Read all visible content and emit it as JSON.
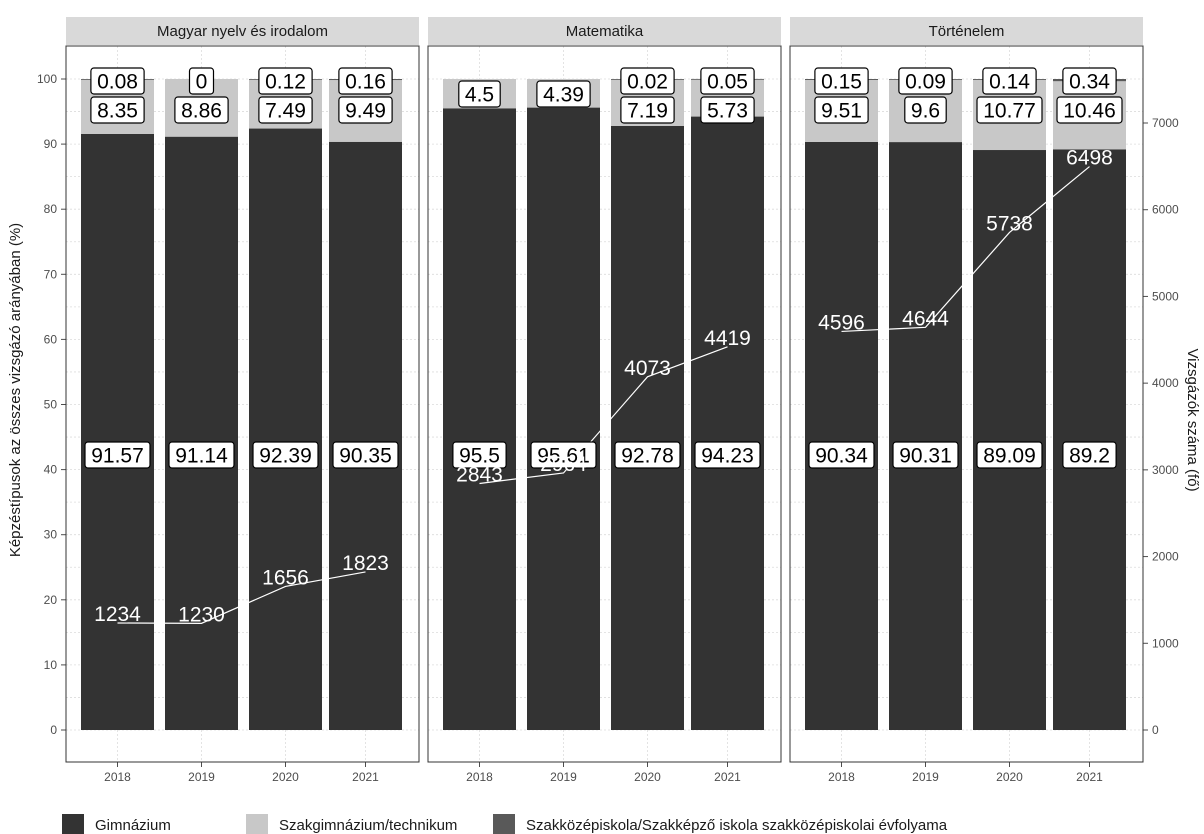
{
  "chart_data": {
    "type": "bar",
    "stacked": true,
    "facets": [
      "Magyar nyelv és irodalom",
      "Matematika",
      "Történelem"
    ],
    "categories": [
      "2018",
      "2019",
      "2020",
      "2021"
    ],
    "ylabel": "Képzéstípusok az összes vizsgázó arányában (%)",
    "y2label": "Vizsgázók száma (fő)",
    "ylim": [
      0,
      100
    ],
    "yticks": [
      "0",
      "10",
      "20",
      "30",
      "40",
      "50",
      "60",
      "70",
      "80",
      "90",
      "100"
    ],
    "y2lim": [
      0,
      7500
    ],
    "y2ticks": [
      "0",
      "1000",
      "2000",
      "3000",
      "4000",
      "5000",
      "6000",
      "7000"
    ],
    "legend": {
      "position": "bottom",
      "items": [
        {
          "name": "Gimnázium",
          "color": "#333333"
        },
        {
          "name": "Szakgimnázium/technikum",
          "color": "#c8c8c8"
        },
        {
          "name": "Szakközépiskola/Szakképző iskola szakközépiskolai évfolyama",
          "color": "#595959"
        }
      ]
    },
    "panels": [
      {
        "facet": "Magyar nyelv és irodalom",
        "gimnazium": [
          "91.57",
          "91.14",
          "92.39",
          "90.35"
        ],
        "szakgimnazium": [
          "8.35",
          "8.86",
          "7.49",
          "9.49"
        ],
        "szakkozepiskola": [
          "0.08",
          "0",
          "0.12",
          "0.16"
        ],
        "counts": [
          "1234",
          "1230",
          "1656",
          "1823"
        ]
      },
      {
        "facet": "Matematika",
        "gimnazium": [
          "95.5",
          "95.61",
          "92.78",
          "94.23"
        ],
        "szakgimnazium": [
          "4.5",
          "4.39",
          "7.19",
          "5.73"
        ],
        "szakkozepiskola": [
          "",
          "",
          "0.02",
          "0.05"
        ],
        "counts": [
          "2843",
          "2964",
          "4073",
          "4419"
        ]
      },
      {
        "facet": "Történelem",
        "gimnazium": [
          "90.34",
          "90.31",
          "89.09",
          "89.2"
        ],
        "szakgimnazium": [
          "9.51",
          "9.6",
          "10.77",
          "10.46"
        ],
        "szakkozepiskola": [
          "0.15",
          "0.09",
          "0.14",
          "0.34"
        ],
        "counts": [
          "4596",
          "4644",
          "5738",
          "6498"
        ]
      }
    ]
  }
}
